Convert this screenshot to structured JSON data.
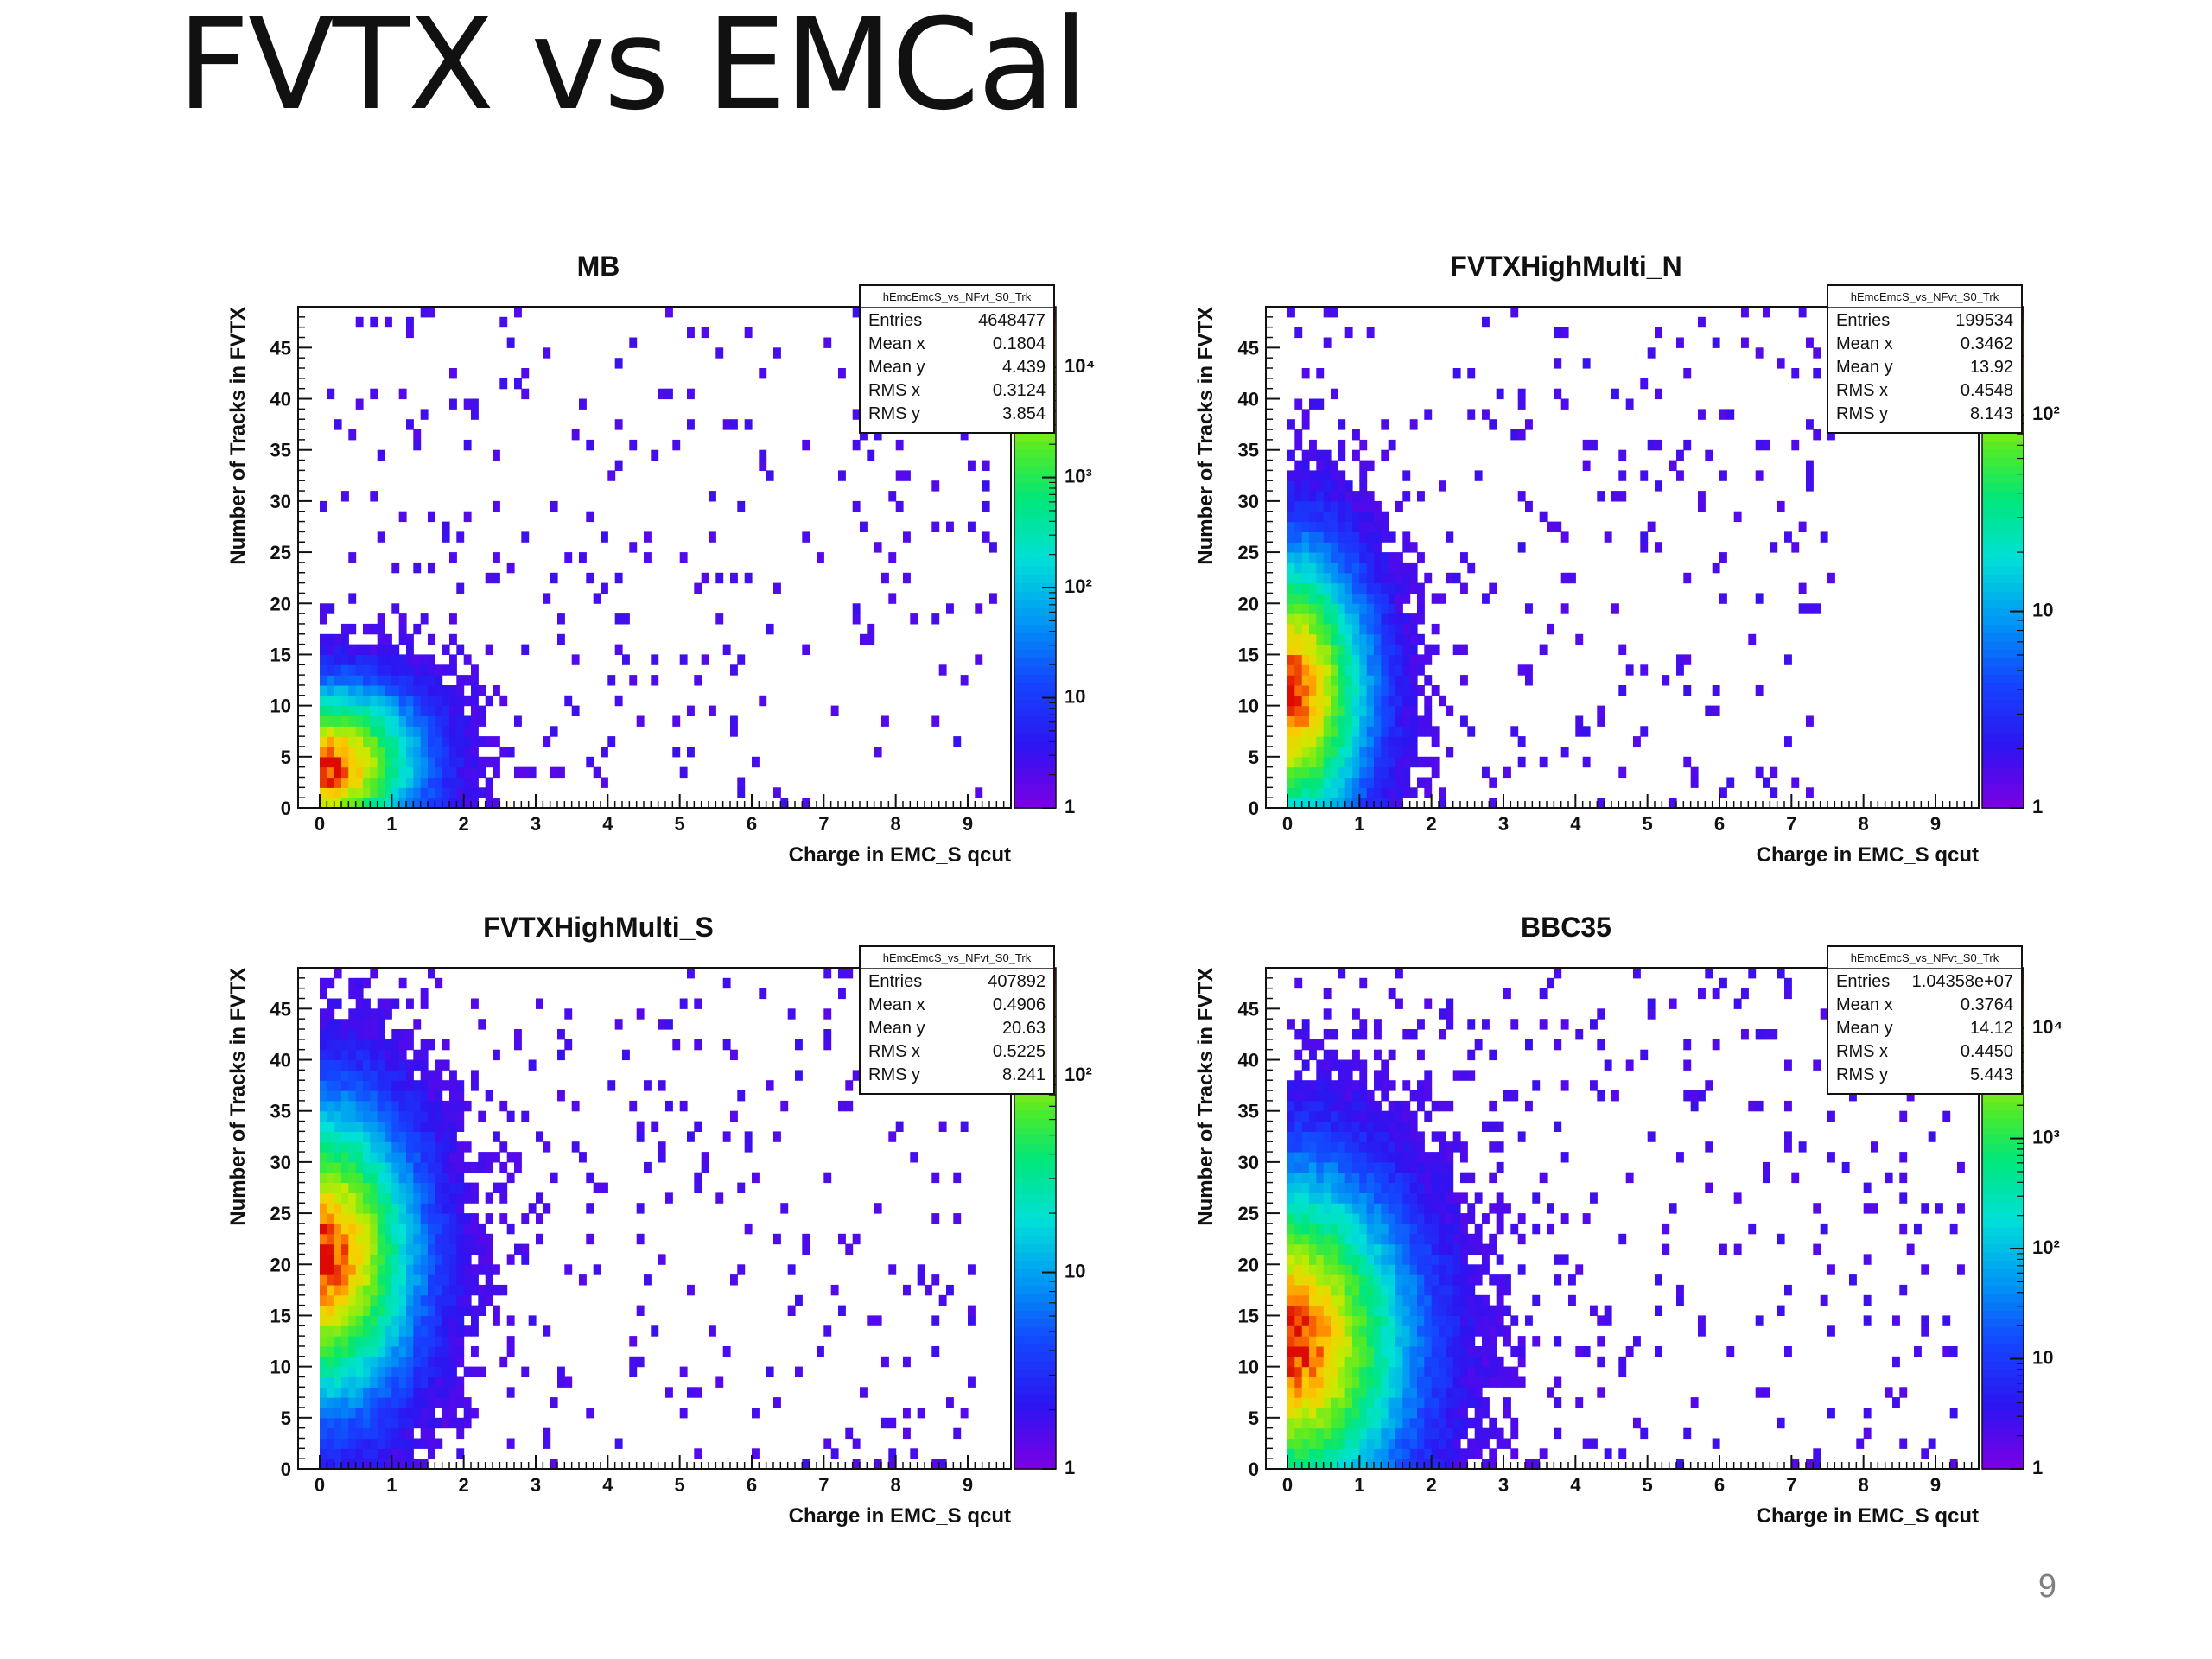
{
  "slide": {
    "title": "FVTX vs EMCal",
    "page_number": "9"
  },
  "chart_data": [
    {
      "type": "heatmap",
      "title": "MB",
      "xlabel": "Charge in EMC_S qcut",
      "ylabel": "Number of Tracks in FVTX",
      "xlim": [
        -0.3,
        9.6
      ],
      "ylim": [
        0,
        49
      ],
      "x_ticks": [
        "0",
        "1",
        "2",
        "3",
        "4",
        "5",
        "6",
        "7",
        "8",
        "9"
      ],
      "y_ticks": [
        "0",
        "5",
        "10",
        "15",
        "20",
        "25",
        "30",
        "35",
        "40",
        "45"
      ],
      "colorbar": {
        "scale": "log",
        "labels": [
          "1",
          "10",
          "10²",
          "10³",
          "10⁴"
        ]
      },
      "stats": {
        "name": "hEmcEmcS_vs_NFvt_S0_Trk",
        "rows": [
          [
            "Entries",
            "4648477"
          ],
          [
            "Mean x",
            "0.1804"
          ],
          [
            "Mean y",
            "4.439"
          ],
          [
            "RMS x",
            "0.3124"
          ],
          [
            "RMS y",
            "3.854"
          ]
        ]
      },
      "distribution": {
        "x_center": 0.0,
        "y_center": 3.5,
        "x_spread": 1.55,
        "y_spread": 9.0,
        "tilt": 0.5,
        "x_max": 9.3,
        "y_max": 49
      }
    },
    {
      "type": "heatmap",
      "title": "FVTXHighMulti_N",
      "xlabel": "Charge in EMC_S qcut",
      "ylabel": "Number of Tracks in FVTX",
      "xlim": [
        -0.3,
        9.6
      ],
      "ylim": [
        0,
        49
      ],
      "x_ticks": [
        "0",
        "1",
        "2",
        "3",
        "4",
        "5",
        "6",
        "7",
        "8",
        "9"
      ],
      "y_ticks": [
        "0",
        "5",
        "10",
        "15",
        "20",
        "25",
        "30",
        "35",
        "40",
        "45"
      ],
      "colorbar": {
        "scale": "log",
        "labels": [
          "1",
          "10",
          "10²"
        ]
      },
      "stats": {
        "name": "hEmcEmcS_vs_NFvt_S0_Trk",
        "rows": [
          [
            "Entries",
            "199534"
          ],
          [
            "Mean x",
            "0.3462"
          ],
          [
            "Mean y",
            "13.92"
          ],
          [
            "RMS x",
            "0.4548"
          ],
          [
            "RMS y",
            "8.143"
          ]
        ]
      },
      "distribution": {
        "x_center": 0.0,
        "y_center": 11.0,
        "x_spread": 1.25,
        "y_spread": 16.0,
        "tilt": 0.0,
        "x_max": 7.5,
        "y_max": 49
      }
    },
    {
      "type": "heatmap",
      "title": "FVTXHighMulti_S",
      "xlabel": "Charge in EMC_S qcut",
      "ylabel": "Number of Tracks in FVTX",
      "xlim": [
        -0.3,
        9.6
      ],
      "ylim": [
        0,
        49
      ],
      "x_ticks": [
        "0",
        "1",
        "2",
        "3",
        "4",
        "5",
        "6",
        "7",
        "8",
        "9"
      ],
      "y_ticks": [
        "0",
        "5",
        "10",
        "15",
        "20",
        "25",
        "30",
        "35",
        "40",
        "45"
      ],
      "colorbar": {
        "scale": "log",
        "labels": [
          "1",
          "10",
          "10²"
        ]
      },
      "stats": {
        "name": "hEmcEmcS_vs_NFvt_S0_Trk",
        "rows": [
          [
            "Entries",
            "407892"
          ],
          [
            "Mean x",
            "0.4906"
          ],
          [
            "Mean y",
            "20.63"
          ],
          [
            "RMS x",
            "0.5225"
          ],
          [
            "RMS y",
            "8.241"
          ]
        ]
      },
      "distribution": {
        "x_center": 0.0,
        "y_center": 20.5,
        "x_spread": 1.5,
        "y_spread": 17.0,
        "tilt": 0.0,
        "x_max": 9.0,
        "y_max": 49
      }
    },
    {
      "type": "heatmap",
      "title": "BBC35",
      "xlabel": "Charge in EMC_S qcut",
      "ylabel": "Number of Tracks in FVTX",
      "xlim": [
        -0.3,
        9.6
      ],
      "ylim": [
        0,
        49
      ],
      "x_ticks": [
        "0",
        "1",
        "2",
        "3",
        "4",
        "5",
        "6",
        "7",
        "8",
        "9"
      ],
      "y_ticks": [
        "0",
        "5",
        "10",
        "15",
        "20",
        "25",
        "30",
        "35",
        "40",
        "45"
      ],
      "colorbar": {
        "scale": "log",
        "labels": [
          "1",
          "10",
          "10²",
          "10³",
          "10⁴"
        ]
      },
      "stats": {
        "name": "hEmcEmcS_vs_NFvt_S0_Trk",
        "rows": [
          [
            "Entries",
            "1.04358e+07"
          ],
          [
            "Mean x",
            "0.3764"
          ],
          [
            "Mean y",
            "14.12"
          ],
          [
            "RMS x",
            "0.4450"
          ],
          [
            "RMS y",
            "5.443"
          ]
        ]
      },
      "distribution": {
        "x_center": 0.0,
        "y_center": 12.0,
        "x_spread": 1.9,
        "y_spread": 19.0,
        "tilt": 0.0,
        "x_max": 9.3,
        "y_max": 49
      }
    }
  ]
}
